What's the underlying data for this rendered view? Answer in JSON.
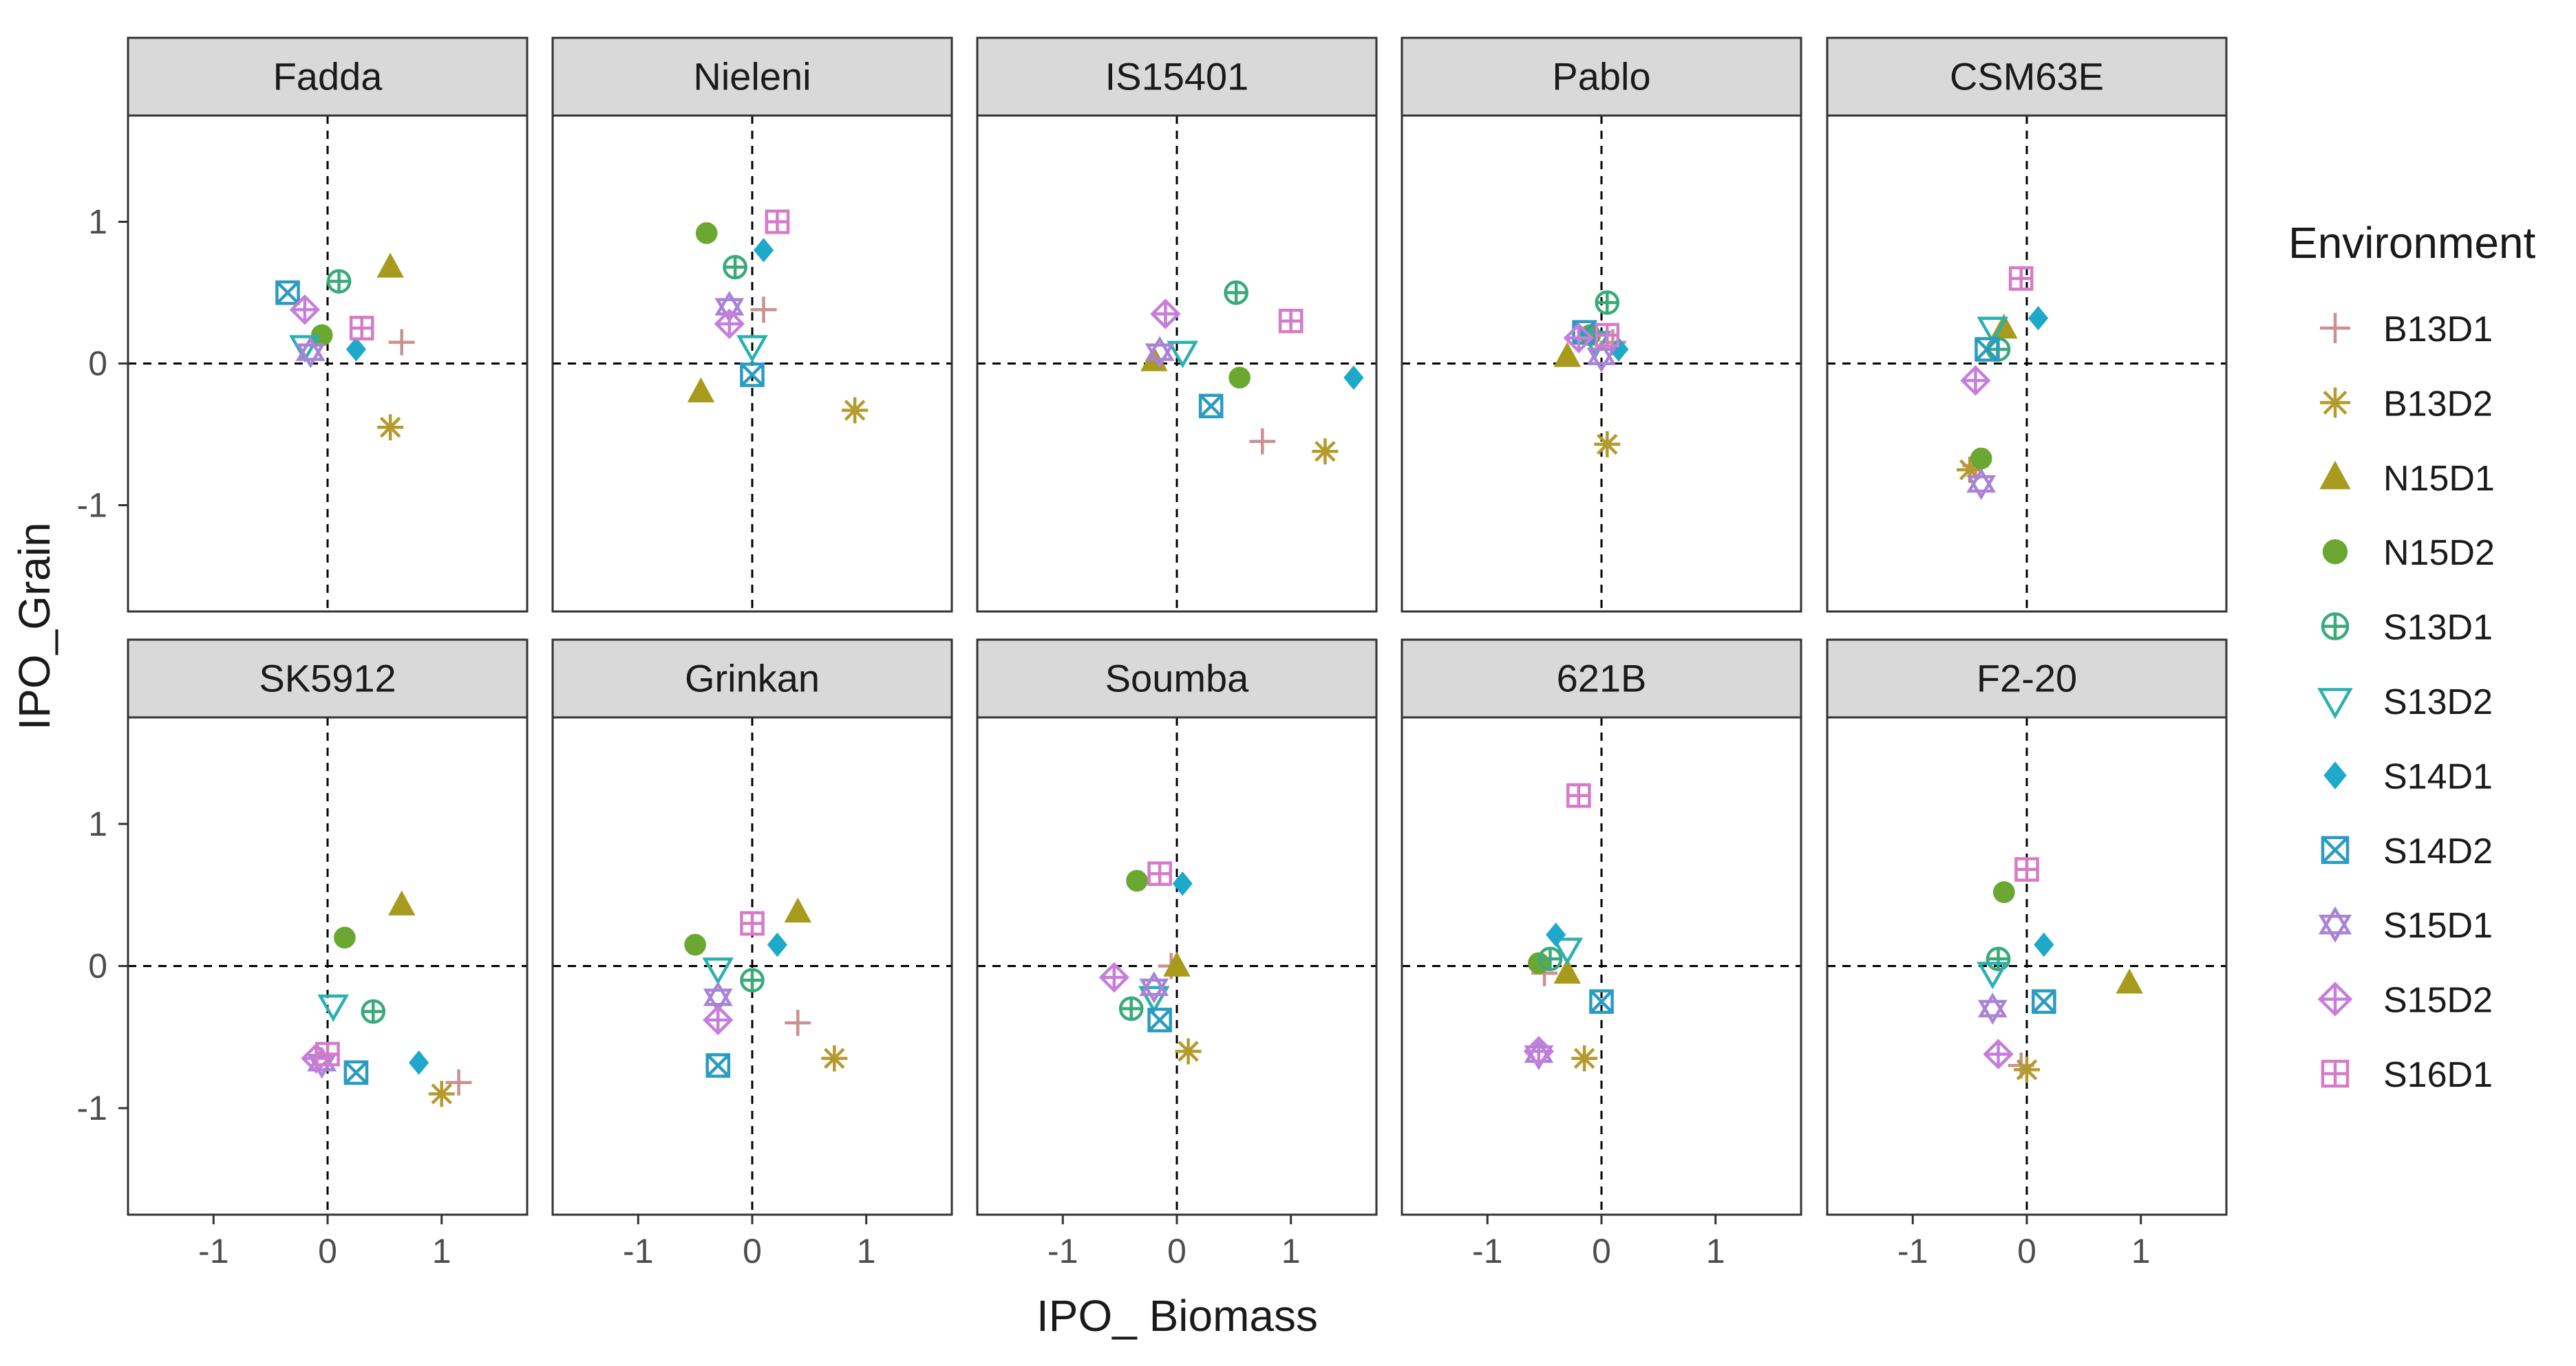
{
  "chart_data": {
    "type": "scatter",
    "facet_layout": "2 rows x 5 columns",
    "xlabel": "IPO_ Biomass",
    "ylabel": "IPO_Grain",
    "xlim": [
      -1.75,
      1.75
    ],
    "ylim": [
      -1.75,
      1.75
    ],
    "x_ticks": [
      -1,
      0,
      1
    ],
    "y_ticks": [
      -1,
      0,
      1
    ],
    "reference_lines": {
      "x": 0,
      "y": 0,
      "style": "dashed"
    },
    "legend": {
      "title": "Environment",
      "position": "right",
      "entries": [
        {
          "name": "B13D1",
          "color": "#C9918F",
          "shape": "plus"
        },
        {
          "name": "B13D2",
          "color": "#B59A2E",
          "shape": "asterisk"
        },
        {
          "name": "N15D1",
          "color": "#A89A1C",
          "shape": "triangle-filled"
        },
        {
          "name": "N15D2",
          "color": "#6BA832",
          "shape": "circle-filled"
        },
        {
          "name": "S13D1",
          "color": "#3AAA7A",
          "shape": "circle-plus"
        },
        {
          "name": "S13D2",
          "color": "#2BB0B2",
          "shape": "triangle-down-open"
        },
        {
          "name": "S14D1",
          "color": "#1EA8C9",
          "shape": "diamond-filled"
        },
        {
          "name": "S14D2",
          "color": "#2B9BC2",
          "shape": "square-cross"
        },
        {
          "name": "S15D1",
          "color": "#A883D6",
          "shape": "star-of-david"
        },
        {
          "name": "S15D2",
          "color": "#C77DDB",
          "shape": "diamond-plus"
        },
        {
          "name": "S16D1",
          "color": "#D67BC7",
          "shape": "square-plus"
        }
      ]
    },
    "panels": [
      {
        "title": "Fadda",
        "points": {
          "B13D1": [
            0.65,
            0.15
          ],
          "B13D2": [
            0.55,
            -0.45
          ],
          "N15D1": [
            0.55,
            0.68
          ],
          "N15D2": [
            -0.05,
            0.2
          ],
          "S13D1": [
            0.1,
            0.58
          ],
          "S13D2": [
            -0.2,
            0.12
          ],
          "S14D1": [
            0.25,
            0.1
          ],
          "S14D2": [
            -0.35,
            0.5
          ],
          "S15D1": [
            -0.15,
            0.08
          ],
          "S15D2": [
            -0.2,
            0.38
          ],
          "S16D1": [
            0.3,
            0.25
          ]
        }
      },
      {
        "title": "Nieleni",
        "points": {
          "B13D1": [
            0.1,
            0.38
          ],
          "B13D2": [
            0.9,
            -0.33
          ],
          "N15D1": [
            -0.45,
            -0.2
          ],
          "N15D2": [
            -0.4,
            0.92
          ],
          "S13D1": [
            -0.15,
            0.68
          ],
          "S13D2": [
            0.0,
            0.12
          ],
          "S14D1": [
            0.1,
            0.8
          ],
          "S14D2": [
            0.0,
            -0.08
          ],
          "S15D1": [
            -0.2,
            0.4
          ],
          "S15D2": [
            -0.2,
            0.28
          ],
          "S16D1": [
            0.22,
            1.0
          ]
        }
      },
      {
        "title": "IS15401",
        "points": {
          "B13D1": [
            0.75,
            -0.55
          ],
          "B13D2": [
            1.3,
            -0.62
          ],
          "N15D1": [
            -0.2,
            0.02
          ],
          "N15D2": [
            0.55,
            -0.1
          ],
          "S13D1": [
            0.52,
            0.5
          ],
          "S13D2": [
            0.05,
            0.08
          ],
          "S14D1": [
            1.55,
            -0.1
          ],
          "S14D2": [
            0.3,
            -0.3
          ],
          "S15D1": [
            -0.15,
            0.08
          ],
          "S15D2": [
            -0.1,
            0.35
          ],
          "S16D1": [
            1.0,
            0.3
          ]
        }
      },
      {
        "title": "Pablo",
        "points": {
          "B13D1": [
            0.1,
            0.15
          ],
          "B13D2": [
            0.05,
            -0.57
          ],
          "N15D1": [
            -0.3,
            0.05
          ],
          "N15D2": [
            -0.1,
            0.2
          ],
          "S13D1": [
            0.05,
            0.43
          ],
          "S13D2": [
            -0.05,
            0.15
          ],
          "S14D1": [
            0.15,
            0.1
          ],
          "S14D2": [
            -0.15,
            0.22
          ],
          "S15D1": [
            0.0,
            0.05
          ],
          "S15D2": [
            -0.2,
            0.18
          ],
          "S16D1": [
            0.05,
            0.2
          ]
        }
      },
      {
        "title": "CSM63E",
        "points": {
          "B13D1": [
            -0.45,
            -0.72
          ],
          "B13D2": [
            -0.5,
            -0.75
          ],
          "N15D1": [
            -0.2,
            0.25
          ],
          "N15D2": [
            -0.4,
            -0.67
          ],
          "S13D1": [
            -0.25,
            0.1
          ],
          "S13D2": [
            -0.3,
            0.25
          ],
          "S14D1": [
            0.1,
            0.32
          ],
          "S14D2": [
            -0.35,
            0.1
          ],
          "S15D1": [
            -0.4,
            -0.85
          ],
          "S15D2": [
            -0.45,
            -0.12
          ],
          "S16D1": [
            -0.05,
            0.6
          ]
        }
      },
      {
        "title": "SK5912",
        "points": {
          "B13D1": [
            1.15,
            -0.82
          ],
          "B13D2": [
            1.0,
            -0.9
          ],
          "N15D1": [
            0.65,
            0.43
          ],
          "N15D2": [
            0.15,
            0.2
          ],
          "S13D1": [
            0.4,
            -0.32
          ],
          "S13D2": [
            0.05,
            -0.28
          ],
          "S14D1": [
            0.8,
            -0.68
          ],
          "S14D2": [
            0.25,
            -0.75
          ],
          "S15D1": [
            -0.05,
            -0.68
          ],
          "S15D2": [
            -0.1,
            -0.65
          ],
          "S16D1": [
            0.0,
            -0.62
          ]
        }
      },
      {
        "title": "Grinkan",
        "points": {
          "B13D1": [
            0.4,
            -0.4
          ],
          "B13D2": [
            0.72,
            -0.65
          ],
          "N15D1": [
            0.4,
            0.38
          ],
          "N15D2": [
            -0.5,
            0.15
          ],
          "S13D1": [
            0.0,
            -0.1
          ],
          "S13D2": [
            -0.3,
            -0.02
          ],
          "S14D1": [
            0.22,
            0.15
          ],
          "S14D2": [
            -0.3,
            -0.7
          ],
          "S15D1": [
            -0.3,
            -0.22
          ],
          "S15D2": [
            -0.3,
            -0.38
          ],
          "S16D1": [
            0.0,
            0.3
          ]
        }
      },
      {
        "title": "Soumba",
        "points": {
          "B13D1": [
            -0.05,
            0.0
          ],
          "B13D2": [
            0.1,
            -0.6
          ],
          "N15D1": [
            0.0,
            0.0
          ],
          "N15D2": [
            -0.35,
            0.6
          ],
          "S13D1": [
            -0.4,
            -0.3
          ],
          "S13D2": [
            -0.2,
            -0.22
          ],
          "S14D1": [
            0.05,
            0.58
          ],
          "S14D2": [
            -0.15,
            -0.38
          ],
          "S15D1": [
            -0.2,
            -0.15
          ],
          "S15D2": [
            -0.55,
            -0.08
          ],
          "S16D1": [
            -0.15,
            0.65
          ]
        }
      },
      {
        "title": "621B",
        "points": {
          "B13D1": [
            -0.5,
            -0.05
          ],
          "B13D2": [
            -0.15,
            -0.65
          ],
          "N15D1": [
            -0.3,
            -0.05
          ],
          "N15D2": [
            -0.55,
            0.02
          ],
          "S13D1": [
            -0.45,
            0.05
          ],
          "S13D2": [
            -0.3,
            0.12
          ],
          "S14D1": [
            -0.4,
            0.22
          ],
          "S14D2": [
            0.0,
            -0.25
          ],
          "S15D1": [
            -0.55,
            -0.62
          ],
          "S15D2": [
            -0.55,
            -0.6
          ],
          "S16D1": [
            -0.2,
            1.2
          ]
        }
      },
      {
        "title": "F2-20",
        "points": {
          "B13D1": [
            -0.05,
            -0.7
          ],
          "B13D2": [
            0.0,
            -0.73
          ],
          "N15D1": [
            0.9,
            -0.12
          ],
          "N15D2": [
            -0.2,
            0.52
          ],
          "S13D1": [
            -0.25,
            0.05
          ],
          "S13D2": [
            -0.3,
            -0.05
          ],
          "S14D1": [
            0.15,
            0.15
          ],
          "S14D2": [
            0.15,
            -0.25
          ],
          "S15D1": [
            -0.3,
            -0.3
          ],
          "S15D2": [
            -0.25,
            -0.62
          ],
          "S16D1": [
            0.0,
            0.68
          ]
        }
      }
    ]
  }
}
